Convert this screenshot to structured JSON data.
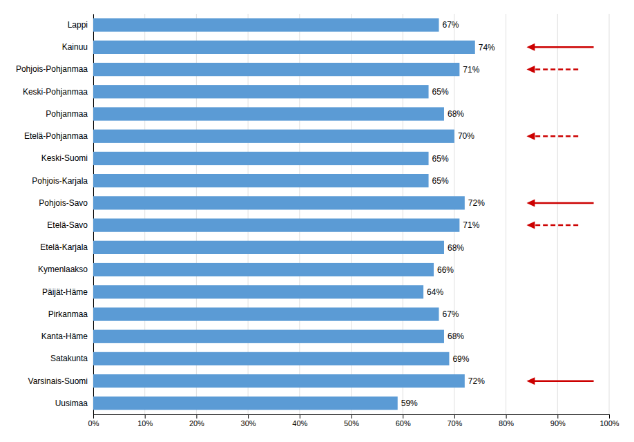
{
  "chart_data": {
    "type": "bar",
    "orientation": "horizontal",
    "categories": [
      "Uusimaa",
      "Varsinais-Suomi",
      "Satakunta",
      "Kanta-Häme",
      "Pirkanmaa",
      "Päijät-Häme",
      "Kymenlaakso",
      "Etelä-Karjala",
      "Etelä-Savo",
      "Pohjois-Savo",
      "Pohjois-Karjala",
      "Keski-Suomi",
      "Etelä-Pohjanmaa",
      "Pohjanmaa",
      "Keski-Pohjanmaa",
      "Pohjois-Pohjanmaa",
      "Kainuu",
      "Lappi"
    ],
    "values": [
      59,
      72,
      69,
      68,
      67,
      64,
      66,
      68,
      71,
      72,
      65,
      65,
      70,
      68,
      65,
      71,
      74,
      67
    ],
    "value_labels": [
      "59%",
      "72%",
      "69%",
      "68%",
      "67%",
      "64%",
      "66%",
      "68%",
      "71%",
      "72%",
      "65%",
      "65%",
      "70%",
      "68%",
      "65%",
      "71%",
      "74%",
      "67%"
    ],
    "data_labels": true,
    "color": "#5B9BD5",
    "xlim": [
      0,
      100
    ],
    "xticks": [
      {
        "value": 0,
        "label": "0%"
      },
      {
        "value": 10,
        "label": "10%"
      },
      {
        "value": 20,
        "label": "20%"
      },
      {
        "value": 30,
        "label": "30%"
      },
      {
        "value": 40,
        "label": "40%"
      },
      {
        "value": 50,
        "label": "50%"
      },
      {
        "value": 60,
        "label": "60%"
      },
      {
        "value": 70,
        "label": "70%"
      },
      {
        "value": 80,
        "label": "80%"
      },
      {
        "value": 90,
        "label": "90%"
      },
      {
        "value": 100,
        "label": "100%"
      }
    ],
    "grid": true,
    "annotations": [
      {
        "type": "arrow",
        "category": "Varsinais-Suomi",
        "x": 97,
        "x_end": 84,
        "line_style": "solid",
        "color": "#CC0000"
      },
      {
        "type": "arrow",
        "category": "Etelä-Savo",
        "x": 94,
        "x_end": 84,
        "line_style": "dashed",
        "color": "#CC0000"
      },
      {
        "type": "arrow",
        "category": "Pohjois-Savo",
        "x": 97,
        "x_end": 84,
        "line_style": "solid",
        "color": "#CC0000"
      },
      {
        "type": "arrow",
        "category": "Etelä-Pohjanmaa",
        "x": 94,
        "x_end": 84,
        "line_style": "dashed",
        "color": "#CC0000"
      },
      {
        "type": "arrow",
        "category": "Pohjois-Pohjanmaa",
        "x": 94,
        "x_end": 84,
        "line_style": "dashed",
        "color": "#CC0000"
      },
      {
        "type": "arrow",
        "category": "Kainuu",
        "x": 97,
        "x_end": 84,
        "line_style": "solid",
        "color": "#CC0000"
      }
    ]
  }
}
